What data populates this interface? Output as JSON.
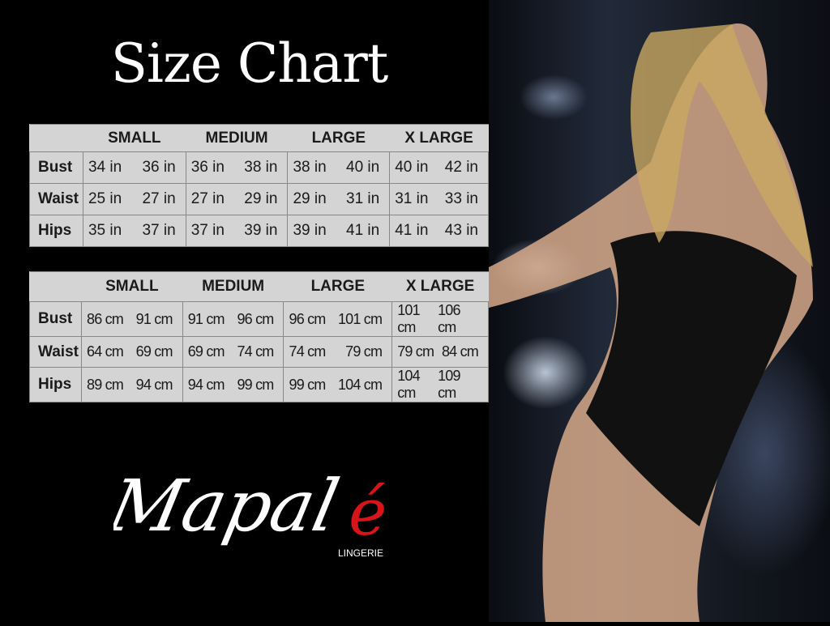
{
  "title": "Size Chart",
  "sizes": [
    "SMALL",
    "MEDIUM",
    "LARGE",
    "X LARGE"
  ],
  "inches_table": {
    "rows": [
      {
        "label": "Bust",
        "values": [
          [
            "34 in",
            "36 in"
          ],
          [
            "36 in",
            "38 in"
          ],
          [
            "38 in",
            "40 in"
          ],
          [
            "40 in",
            "42 in"
          ]
        ]
      },
      {
        "label": "Waist",
        "values": [
          [
            "25 in",
            "27 in"
          ],
          [
            "27 in",
            "29 in"
          ],
          [
            "29 in",
            "31 in"
          ],
          [
            "31 in",
            "33 in"
          ]
        ]
      },
      {
        "label": "Hips",
        "values": [
          [
            "35 in",
            "37 in"
          ],
          [
            "37 in",
            "39 in"
          ],
          [
            "39 in",
            "41 in"
          ],
          [
            "41 in",
            "43 in"
          ]
        ]
      }
    ]
  },
  "cm_table": {
    "rows": [
      {
        "label": "Bust",
        "values": [
          [
            "86 cm",
            "91 cm"
          ],
          [
            "91 cm",
            "96 cm"
          ],
          [
            "96 cm",
            "101 cm"
          ],
          [
            "101 cm",
            "106 cm"
          ]
        ]
      },
      {
        "label": "Waist",
        "values": [
          [
            "64 cm",
            "69 cm"
          ],
          [
            "69 cm",
            "74 cm"
          ],
          [
            "74 cm",
            "79 cm"
          ],
          [
            "79 cm",
            "84 cm"
          ]
        ]
      },
      {
        "label": "Hips",
        "values": [
          [
            "89 cm",
            "94 cm"
          ],
          [
            "94 cm",
            "99 cm"
          ],
          [
            "99 cm",
            "104 cm"
          ],
          [
            "104 cm",
            "109 cm"
          ]
        ]
      }
    ]
  },
  "brand": {
    "name": "Mapalé",
    "name_main": "Mapal",
    "name_accent": "é",
    "tagline": "LINGERIE",
    "accent_color": "#d7141a"
  },
  "colors": {
    "background": "#000000",
    "table_bg": "#d4d4d4"
  }
}
